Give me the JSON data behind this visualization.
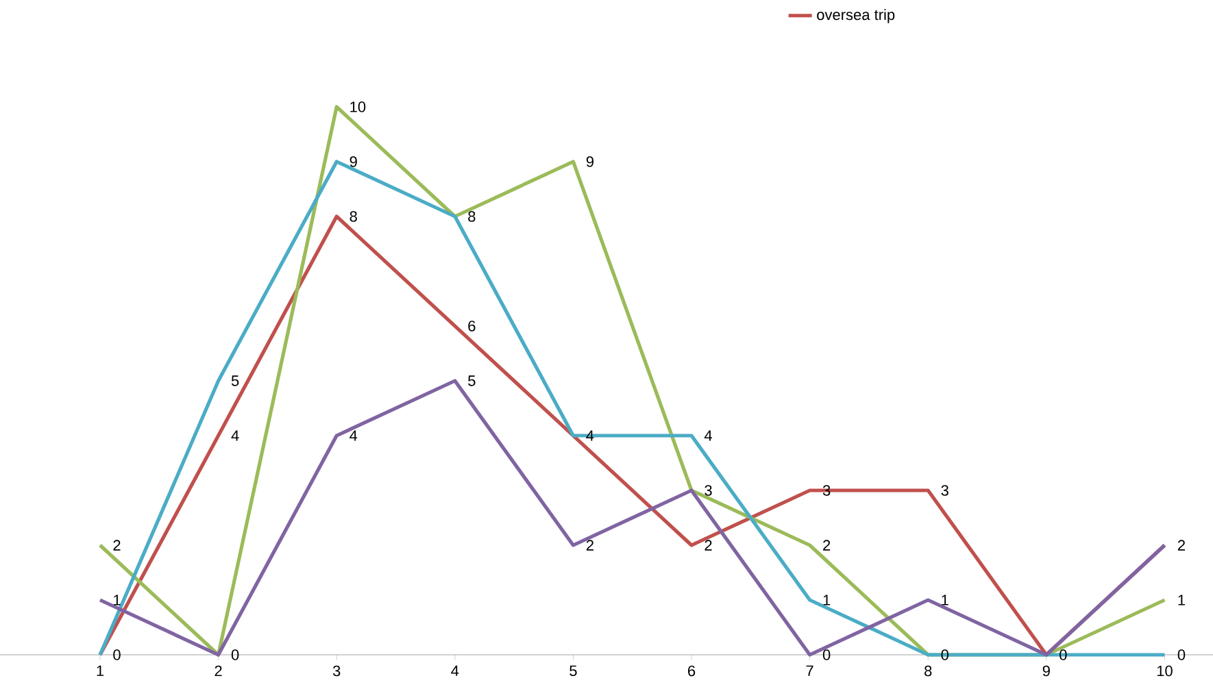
{
  "chart_data": {
    "type": "line",
    "categories": [
      "1",
      "2",
      "3",
      "4",
      "5",
      "6",
      "7",
      "8",
      "9",
      "10"
    ],
    "series": [
      {
        "name": "oversea trip",
        "color": "#c0504d",
        "values": [
          0,
          4,
          8,
          6,
          4,
          2,
          3,
          3,
          0,
          2
        ],
        "value_labels": [
          "0",
          "4",
          "8",
          "6",
          "4",
          "2",
          "3",
          "3",
          "0",
          "2"
        ]
      },
      {
        "color": "#9bbb59",
        "values": [
          2,
          0,
          10,
          8,
          9,
          3,
          2,
          0,
          0,
          1
        ],
        "value_labels": [
          "2",
          "0",
          "10",
          "8",
          "9",
          "3",
          "2",
          "0",
          null,
          "1"
        ]
      },
      {
        "color": "#4bacc6",
        "values": [
          0,
          5,
          9,
          8,
          4,
          4,
          1,
          0,
          0,
          0
        ],
        "value_labels": [
          null,
          "5",
          "9",
          null,
          null,
          "4",
          "1",
          null,
          null,
          "0"
        ]
      },
      {
        "color": "#8064a2",
        "values": [
          1,
          0,
          4,
          5,
          2,
          3,
          0,
          1,
          0,
          2
        ],
        "value_labels": [
          "1",
          null,
          "4",
          "5",
          "2",
          null,
          "0",
          "1",
          null,
          null
        ]
      }
    ],
    "legend": "top right",
    "grid": false,
    "marker": "none",
    "line_style": "solid"
  }
}
